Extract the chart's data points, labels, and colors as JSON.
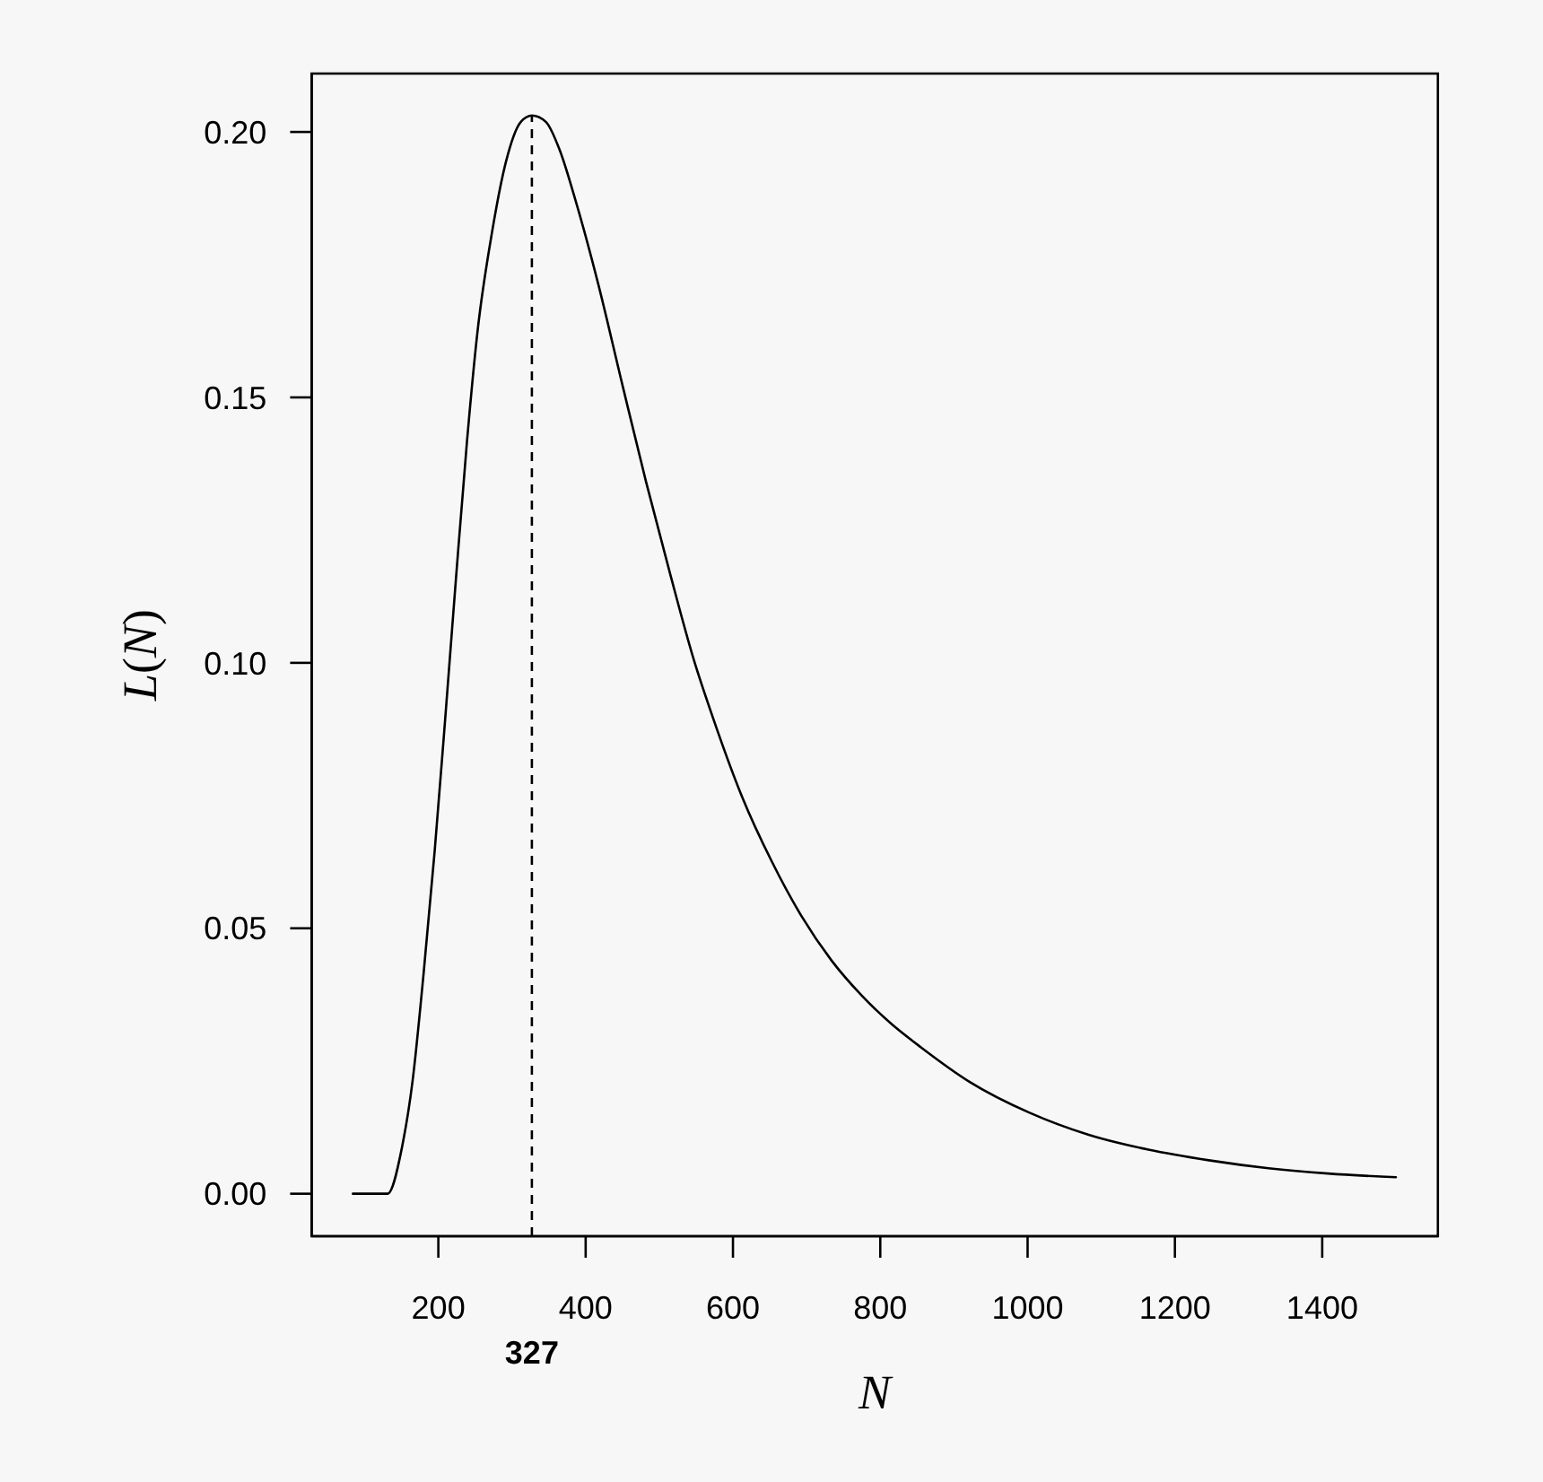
{
  "chart_data": {
    "type": "line",
    "xlabel": "N",
    "ylabel": "L(N)",
    "x": [
      84,
      131,
      151,
      165,
      180,
      195,
      209,
      224,
      239,
      253,
      273,
      292,
      312,
      327,
      346,
      365,
      385,
      417,
      450,
      482,
      515,
      547,
      572,
      612,
      653,
      693,
      734,
      775,
      815,
      856,
      921,
      1002,
      1083,
      1164,
      1246,
      1327,
      1408,
      1500
    ],
    "values": [
      0,
      0,
      0.009,
      0.0212,
      0.0415,
      0.0645,
      0.0889,
      0.116,
      0.1419,
      0.1622,
      0.1812,
      0.1945,
      0.2019,
      0.2031,
      0.2019,
      0.1965,
      0.1877,
      0.1714,
      0.1523,
      0.1341,
      0.1166,
      0.1005,
      0.09,
      0.0749,
      0.0625,
      0.0523,
      0.0439,
      0.0373,
      0.032,
      0.0275,
      0.0211,
      0.0153,
      0.0111,
      0.0083,
      0.0063,
      0.0048,
      0.0038,
      0.0031
    ],
    "color": "#000000",
    "line_style": "solid",
    "xlim": [
      28,
      1557
    ],
    "ylim": [
      -0.008,
      0.211
    ],
    "xticks": [
      200,
      400,
      600,
      800,
      1000,
      1200,
      1400
    ],
    "yticks": [
      {
        "value": 0,
        "label": "0.00"
      },
      {
        "value": 0.05,
        "label": "0.05"
      },
      {
        "value": 0.1,
        "label": "0.10"
      },
      {
        "value": 0.15,
        "label": "0.15"
      },
      {
        "value": 0.2,
        "label": "0.20"
      }
    ],
    "ref_lines": [
      {
        "axis": "x",
        "value": 327,
        "label": "327",
        "line_style": "dashed",
        "color": "#000000"
      }
    ]
  }
}
